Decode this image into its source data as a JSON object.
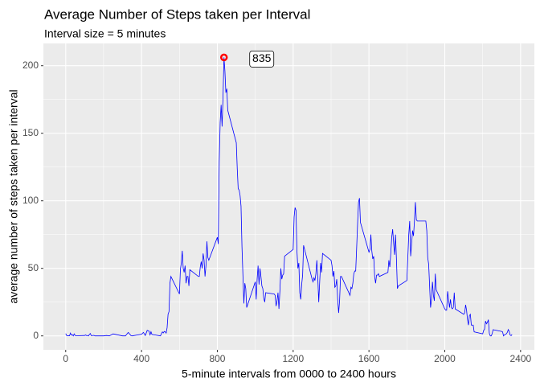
{
  "chart_data": {
    "type": "line",
    "title": "Average Number of Steps taken per Interval",
    "subtitle": "Interval size = 5 minutes",
    "x_label": "5-minute intervals from 0000 to 2400 hours",
    "y_label": "average number of steps taken per interval",
    "color": "blue",
    "xlim": [
      -117.75,
      2472.75
    ],
    "ylim": [
      -10.3,
      216.5
    ],
    "xticks": [
      0,
      400,
      800,
      1200,
      1600,
      2000,
      2400
    ],
    "yticks": [
      0,
      50,
      100,
      150,
      200
    ],
    "minor_xticks": [
      200,
      600,
      1000,
      1400,
      1800,
      2200
    ],
    "minor_yticks": [
      25,
      75,
      125,
      175
    ],
    "grid": true,
    "highlight": {
      "x": 835,
      "y": 206.17,
      "color": "red"
    },
    "x": [
      0,
      5,
      10,
      15,
      20,
      25,
      30,
      35,
      40,
      45,
      50,
      55,
      100,
      105,
      110,
      115,
      120,
      125,
      130,
      135,
      140,
      145,
      150,
      155,
      200,
      215,
      230,
      250,
      300,
      315,
      330,
      345,
      350,
      400,
      410,
      420,
      430,
      440,
      445,
      450,
      455,
      500,
      505,
      510,
      515,
      520,
      525,
      530,
      535,
      540,
      545,
      550,
      555,
      600,
      605,
      610,
      615,
      620,
      625,
      630,
      635,
      640,
      645,
      650,
      655,
      700,
      705,
      710,
      715,
      720,
      725,
      730,
      735,
      740,
      745,
      750,
      755,
      800,
      805,
      810,
      815,
      820,
      825,
      830,
      835,
      840,
      845,
      850,
      855,
      900,
      905,
      910,
      915,
      920,
      925,
      930,
      935,
      940,
      945,
      950,
      955,
      1000,
      1005,
      1010,
      1015,
      1020,
      1025,
      1030,
      1035,
      1040,
      1045,
      1050,
      1055,
      1100,
      1105,
      1110,
      1115,
      1120,
      1125,
      1130,
      1135,
      1140,
      1145,
      1150,
      1155,
      1200,
      1205,
      1210,
      1215,
      1220,
      1225,
      1230,
      1235,
      1240,
      1245,
      1250,
      1255,
      1300,
      1305,
      1310,
      1315,
      1320,
      1325,
      1330,
      1335,
      1340,
      1345,
      1350,
      1355,
      1400,
      1405,
      1410,
      1415,
      1420,
      1425,
      1430,
      1435,
      1440,
      1445,
      1450,
      1455,
      1500,
      1505,
      1510,
      1515,
      1520,
      1525,
      1530,
      1535,
      1540,
      1545,
      1550,
      1555,
      1600,
      1605,
      1610,
      1615,
      1620,
      1625,
      1630,
      1635,
      1640,
      1645,
      1650,
      1655,
      1700,
      1705,
      1710,
      1715,
      1720,
      1725,
      1730,
      1735,
      1740,
      1745,
      1750,
      1755,
      1800,
      1805,
      1810,
      1815,
      1820,
      1825,
      1830,
      1835,
      1840,
      1845,
      1850,
      1855,
      1900,
      1905,
      1910,
      1915,
      1920,
      1925,
      1930,
      1935,
      1940,
      1945,
      1950,
      1955,
      2000,
      2005,
      2010,
      2015,
      2020,
      2025,
      2030,
      2035,
      2040,
      2045,
      2050,
      2055,
      2100,
      2105,
      2110,
      2115,
      2120,
      2125,
      2130,
      2135,
      2140,
      2145,
      2150,
      2155,
      2200,
      2205,
      2210,
      2215,
      2220,
      2225,
      2230,
      2235,
      2240,
      2245,
      2250,
      2255,
      2300,
      2305,
      2310,
      2315,
      2320,
      2325,
      2330,
      2335,
      2340,
      2345,
      2350,
      2355
    ],
    "values": [
      1.7,
      0.3,
      0.1,
      0.2,
      0.1,
      2.1,
      0.5,
      0.9,
      0,
      1.5,
      0.3,
      0.1,
      0.3,
      0.7,
      0.2,
      0.3,
      0,
      1.1,
      1.8,
      0.2,
      0.2,
      0.4,
      0.3,
      0,
      0,
      0.3,
      0,
      1.5,
      0,
      0,
      2.6,
      0.1,
      0,
      1.2,
      2.6,
      0.3,
      4.1,
      3.5,
      0.8,
      3.1,
      1.1,
      0,
      1.6,
      3,
      2.2,
      3.3,
      3,
      2.1,
      6.1,
      16,
      18,
      39,
      44,
      31,
      49,
      54,
      63,
      50,
      47,
      52,
      39,
      44,
      44,
      37,
      49,
      44,
      44,
      51,
      55,
      50,
      61,
      56,
      44,
      52,
      70,
      58,
      56,
      73,
      68,
      129,
      158,
      171,
      155,
      177,
      206.17,
      196,
      180,
      183,
      167,
      143,
      124,
      109,
      108,
      104,
      96,
      66,
      45,
      24,
      39,
      35,
      21,
      40,
      27,
      42,
      52,
      38,
      50,
      44,
      37,
      35,
      28,
      25,
      32,
      31,
      30,
      22,
      26,
      32,
      20,
      33,
      50,
      42,
      45,
      46,
      59,
      64,
      88,
      95,
      93,
      63,
      50,
      54,
      32,
      27,
      38,
      45,
      67,
      42,
      40,
      43,
      41,
      46,
      56,
      43,
      25,
      40,
      54,
      47,
      61,
      56,
      52,
      44,
      48,
      36,
      37,
      42,
      27,
      17,
      26,
      44,
      44,
      30,
      36,
      35,
      39,
      46,
      48,
      48,
      65,
      83,
      99,
      102,
      84,
      62,
      64,
      75,
      63,
      57,
      59,
      44,
      39,
      45,
      45,
      46,
      44,
      47,
      56,
      51,
      61,
      73,
      79,
      69,
      60,
      75,
      57,
      35,
      37,
      41,
      58,
      75,
      85,
      59,
      68,
      78,
      74,
      85,
      99,
      86,
      85,
      85,
      78,
      58,
      53,
      37,
      21,
      27,
      40,
      30,
      26,
      46,
      34,
      20,
      19,
      19,
      33,
      27,
      21,
      27,
      21,
      20,
      21,
      32,
      20,
      16,
      17,
      23,
      19,
      12,
      8,
      15,
      16,
      8,
      8,
      8,
      3,
      1.5,
      4,
      5,
      11,
      9,
      10,
      12,
      2,
      0,
      0,
      1.6,
      4.6,
      3.3,
      3,
      0,
      0.8,
      1,
      1.6,
      2.6,
      4.7,
      3.3,
      0.6,
      0.2,
      1.1
    ]
  }
}
